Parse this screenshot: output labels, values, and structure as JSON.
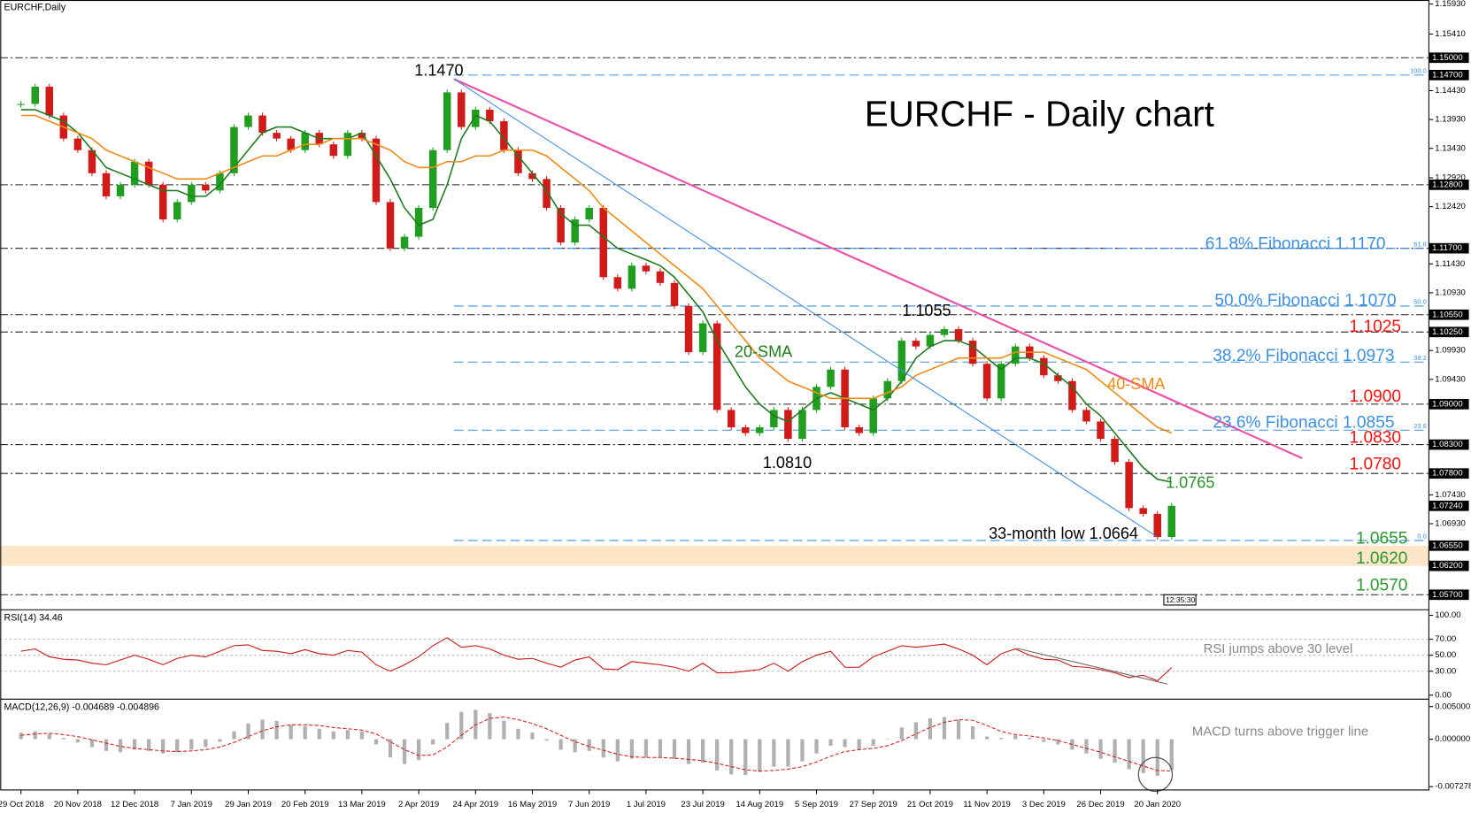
{
  "chart_data": [
    {
      "type": "candlestick",
      "label": "EURCHF,Daily",
      "title": "EURCHF - Daily chart",
      "categories": [
        "29 Oct 2018",
        null,
        null,
        null,
        "20 Nov 2018",
        null,
        null,
        null,
        "12 Dec 2018",
        null,
        null,
        null,
        "7 Jan 2019",
        null,
        null,
        null,
        "29 Jan 2019",
        null,
        null,
        null,
        "20 Feb 2019",
        null,
        null,
        null,
        "13 Mar 2019",
        null,
        null,
        null,
        "2 Apr 2019",
        null,
        null,
        null,
        "24 Apr 2019",
        null,
        null,
        null,
        "16 May 2019",
        null,
        null,
        null,
        "7 Jun 2019",
        null,
        null,
        null,
        "1 Jul 2019",
        null,
        null,
        null,
        "23 Jul 2019",
        null,
        null,
        null,
        "14 Aug 2019",
        null,
        null,
        null,
        "5 Sep 2019",
        null,
        null,
        null,
        "27 Sep 2019",
        null,
        null,
        null,
        "21 Oct 2019",
        null,
        null,
        null,
        "11 Nov 2019",
        null,
        null,
        null,
        "3 Dec 2019",
        null,
        null,
        null,
        "26 Dec 2019",
        null,
        null,
        null,
        "20 Jan 2020",
        null
      ],
      "series": [
        {
          "name": "EURCHF",
          "up_color": "#1f9e1f",
          "down_color": "#d11a1a",
          "values": [
            1.142,
            1.145,
            1.14,
            1.136,
            1.134,
            1.13,
            1.126,
            1.128,
            1.132,
            1.128,
            1.122,
            1.125,
            1.128,
            1.127,
            1.13,
            1.138,
            1.14,
            1.137,
            1.136,
            1.134,
            1.137,
            1.135,
            1.133,
            1.137,
            1.136,
            1.125,
            1.117,
            1.119,
            1.124,
            1.134,
            1.144,
            1.138,
            1.141,
            1.139,
            1.134,
            1.13,
            1.129,
            1.124,
            1.118,
            1.122,
            1.124,
            1.112,
            1.11,
            1.114,
            1.113,
            1.111,
            1.107,
            1.099,
            1.104,
            1.089,
            1.086,
            1.085,
            1.086,
            1.089,
            1.084,
            1.089,
            1.093,
            1.096,
            1.086,
            1.085,
            1.091,
            1.094,
            1.101,
            1.1,
            1.102,
            1.103,
            1.101,
            1.097,
            1.091,
            1.097,
            1.1,
            1.098,
            1.095,
            1.094,
            1.089,
            1.087,
            1.084,
            1.08,
            1.072,
            1.071,
            1.067,
            1.0724
          ]
        },
        {
          "name": "20-SMA",
          "color": "#1e7b1e",
          "values": [
            1.141,
            1.141,
            1.14,
            1.139,
            1.137,
            1.134,
            1.131,
            1.13,
            1.129,
            1.128,
            1.127,
            1.127,
            1.126,
            1.126,
            1.128,
            1.131,
            1.134,
            1.137,
            1.138,
            1.138,
            1.137,
            1.136,
            1.136,
            1.136,
            1.137,
            1.133,
            1.129,
            1.124,
            1.121,
            1.122,
            1.128,
            1.136,
            1.14,
            1.139,
            1.136,
            1.133,
            1.13,
            1.127,
            1.123,
            1.121,
            1.121,
            1.119,
            1.117,
            1.116,
            1.115,
            1.114,
            1.112,
            1.109,
            1.106,
            1.101,
            1.097,
            1.093,
            1.09,
            1.088,
            1.087,
            1.089,
            1.091,
            1.092,
            1.091,
            1.09,
            1.089,
            1.091,
            1.094,
            1.098,
            1.1,
            1.101,
            1.101,
            1.1,
            1.098,
            1.096,
            1.098,
            1.098,
            1.097,
            1.095,
            1.093,
            1.09,
            1.088,
            1.085,
            1.082,
            1.079,
            1.077,
            1.0765
          ]
        },
        {
          "name": "40-SMA",
          "color": "#f08a12",
          "values": [
            1.14,
            1.14,
            1.139,
            1.138,
            1.137,
            1.136,
            1.134,
            1.133,
            1.132,
            1.131,
            1.13,
            1.129,
            1.129,
            1.129,
            1.13,
            1.131,
            1.132,
            1.133,
            1.133,
            1.134,
            1.135,
            1.135,
            1.136,
            1.136,
            1.136,
            1.135,
            1.134,
            1.132,
            1.131,
            1.131,
            1.132,
            1.132,
            1.133,
            1.133,
            1.134,
            1.134,
            1.134,
            1.133,
            1.131,
            1.129,
            1.127,
            1.124,
            1.122,
            1.12,
            1.118,
            1.116,
            1.114,
            1.112,
            1.11,
            1.107,
            1.104,
            1.101,
            1.098,
            1.096,
            1.094,
            1.093,
            1.092,
            1.091,
            1.091,
            1.091,
            1.091,
            1.092,
            1.093,
            1.095,
            1.096,
            1.097,
            1.098,
            1.098,
            1.098,
            1.098,
            1.099,
            1.099,
            1.099,
            1.098,
            1.097,
            1.096,
            1.094,
            1.092,
            1.09,
            1.088,
            1.086,
            1.085
          ]
        }
      ],
      "ylim": [
        1.0544,
        1.16
      ],
      "yticks": [
        {
          "value": 1.1593,
          "label": "1.15930"
        },
        {
          "value": 1.1541,
          "label": "1.15410"
        },
        {
          "value": 1.1443,
          "label": "1.14430"
        },
        {
          "value": 1.1393,
          "label": "1.13930"
        },
        {
          "value": 1.1343,
          "label": "1.13430"
        },
        {
          "value": 1.1292,
          "label": "1.12920"
        },
        {
          "value": 1.1242,
          "label": "1.12420"
        },
        {
          "value": 1.1143,
          "label": "1.11430"
        },
        {
          "value": 1.1093,
          "label": "1.10930"
        },
        {
          "value": 1.0993,
          "label": "1.09930"
        },
        {
          "value": 1.0943,
          "label": "1.09430"
        },
        {
          "value": 1.0743,
          "label": "1.07430"
        },
        {
          "value": 1.0693,
          "label": "1.06930"
        }
      ],
      "price_boxes": [
        {
          "value": 1.15,
          "label": "1.15000"
        },
        {
          "value": 1.147,
          "label": "1.14700"
        },
        {
          "value": 1.128,
          "label": "1.12800"
        },
        {
          "value": 1.117,
          "label": "1.11700"
        },
        {
          "value": 1.1055,
          "label": "1.10550"
        },
        {
          "value": 1.1025,
          "label": "1.10250"
        },
        {
          "value": 1.09,
          "label": "1.09000"
        },
        {
          "value": 1.083,
          "label": "1.08300"
        },
        {
          "value": 1.078,
          "label": "1.07800"
        },
        {
          "value": 1.0724,
          "label": "1.07240"
        },
        {
          "value": 1.0655,
          "label": "1.06550"
        },
        {
          "value": 1.062,
          "label": "1.06200"
        },
        {
          "value": 1.057,
          "label": "1.05700"
        }
      ],
      "horizontal_lines": [
        1.15,
        1.128,
        1.117,
        1.1055,
        1.1025,
        1.09,
        1.083,
        1.078,
        1.057
      ],
      "fibonacci": [
        {
          "value": 1.147,
          "label": "100.0"
        },
        {
          "value": 1.117,
          "label": "61.8"
        },
        {
          "value": 1.107,
          "label": "50.0"
        },
        {
          "value": 1.0973,
          "label": "38.2"
        },
        {
          "value": 1.0855,
          "label": "23.6"
        },
        {
          "value": 1.0664,
          "label": "0.0"
        }
      ],
      "zone": [
        1.062,
        1.0655
      ],
      "zone_color": "#fde5c8",
      "fib_color": "#3d8fe0",
      "annotations": [
        "1.1470",
        "1.1055",
        "1.0810",
        "33-month low 1.0664",
        "1.0765",
        "61.8% Fibonacci 1.1170",
        "50.0% Fibonacci 1.1070",
        "38.2% Fibonacci 1.0973",
        "23.6% Fibonacci 1.0855",
        "1.1025",
        "1.0900",
        "1.0830",
        "1.0780",
        "1.0655",
        "1.0620",
        "1.0570",
        "12:35:30"
      ]
    },
    {
      "type": "line",
      "label": "RSI(14) 34.46",
      "annotation": "RSI jumps above 30 level",
      "series": [
        {
          "name": "RSI",
          "color": "#cc1111",
          "values": [
            55,
            58,
            48,
            45,
            44,
            40,
            38,
            44,
            50,
            45,
            38,
            46,
            50,
            48,
            55,
            62,
            63,
            56,
            55,
            52,
            57,
            52,
            50,
            56,
            54,
            38,
            30,
            38,
            48,
            62,
            72,
            60,
            62,
            58,
            50,
            45,
            46,
            40,
            35,
            44,
            48,
            33,
            32,
            42,
            40,
            38,
            35,
            30,
            40,
            28,
            28,
            30,
            32,
            40,
            30,
            42,
            50,
            55,
            35,
            35,
            48,
            55,
            62,
            60,
            62,
            64,
            58,
            50,
            38,
            52,
            58,
            50,
            45,
            44,
            36,
            35,
            32,
            28,
            22,
            25,
            18,
            34.46
          ]
        }
      ],
      "ylim": [
        -5,
        107
      ],
      "yticks": [
        {
          "value": 100,
          "label": "100.00"
        },
        {
          "value": 70,
          "label": "70.00"
        },
        {
          "value": 50,
          "label": "50.00"
        },
        {
          "value": 30,
          "label": "30.00"
        },
        {
          "value": 0,
          "label": "0.00"
        }
      ]
    },
    {
      "type": "macd",
      "label": "MACD(12,26,9) -0.004689 -0.004896",
      "annotation": "MACD turns above trigger line",
      "series": [
        {
          "name": "MACD",
          "color": "#b0b0b0",
          "values": [
            0.001,
            0.0012,
            0.0008,
            0.0002,
            -0.0005,
            -0.0012,
            -0.0018,
            -0.002,
            -0.0016,
            -0.0018,
            -0.0022,
            -0.002,
            -0.0016,
            -0.0012,
            -0.0004,
            0.0012,
            0.0024,
            0.003,
            0.0028,
            0.0022,
            0.002,
            0.0016,
            0.0012,
            0.0014,
            0.0012,
            -0.0008,
            -0.0028,
            -0.0038,
            -0.0032,
            -0.0008,
            0.0025,
            0.0042,
            0.0045,
            0.004,
            0.0028,
            0.0016,
            0.001,
            -0.0002,
            -0.0016,
            -0.002,
            -0.0018,
            -0.0028,
            -0.0034,
            -0.003,
            -0.0028,
            -0.0028,
            -0.003,
            -0.0038,
            -0.0036,
            -0.0048,
            -0.0054,
            -0.0055,
            -0.005,
            -0.0042,
            -0.0042,
            -0.0034,
            -0.0022,
            -0.001,
            -0.0012,
            -0.0016,
            -0.001,
            0,
            0.0018,
            0.0026,
            0.0032,
            0.0034,
            0.003,
            0.002,
            0.0004,
            0.0002,
            0.0006,
            0.0002,
            -0.0004,
            -0.0008,
            -0.0016,
            -0.0022,
            -0.003,
            -0.0036,
            -0.0046,
            -0.0052,
            -0.0056,
            -0.004689
          ]
        },
        {
          "name": "Signal",
          "color": "#d42020",
          "values": [
            0.0006,
            0.0008,
            0.0009,
            0.0007,
            0.0004,
            -0.0001,
            -0.0006,
            -0.0011,
            -0.0014,
            -0.0016,
            -0.0018,
            -0.0019,
            -0.0018,
            -0.0016,
            -0.0012,
            -0.0005,
            0.0004,
            0.0013,
            0.0019,
            0.0022,
            0.0022,
            0.0021,
            0.0018,
            0.0016,
            0.0014,
            0.0008,
            -0.0004,
            -0.0016,
            -0.0025,
            -0.0024,
            -0.0012,
            0.0006,
            0.0022,
            0.0032,
            0.0034,
            0.003,
            0.0024,
            0.0016,
            0.0006,
            -0.0004,
            -0.0011,
            -0.0017,
            -0.0023,
            -0.0027,
            -0.0028,
            -0.0028,
            -0.0029,
            -0.0031,
            -0.0033,
            -0.0037,
            -0.0042,
            -0.0047,
            -0.0049,
            -0.0048,
            -0.0046,
            -0.0042,
            -0.0035,
            -0.0026,
            -0.0019,
            -0.0016,
            -0.0014,
            -0.001,
            -0.0002,
            0.0008,
            0.0018,
            0.0026,
            0.003,
            0.0029,
            0.0021,
            0.0012,
            0.0007,
            0.0005,
            0.0002,
            -0.0002,
            -0.0008,
            -0.0014,
            -0.002,
            -0.0027,
            -0.0034,
            -0.0041,
            -0.0048,
            -0.004896
          ]
        }
      ],
      "ylim": [
        -0.007278,
        0.006
      ],
      "yticks": [
        {
          "value": 0.005,
          "label": "0.005000"
        },
        {
          "value": 0,
          "label": "0.000000"
        },
        {
          "value": -0.007278,
          "label": "-0.007278"
        }
      ]
    }
  ]
}
